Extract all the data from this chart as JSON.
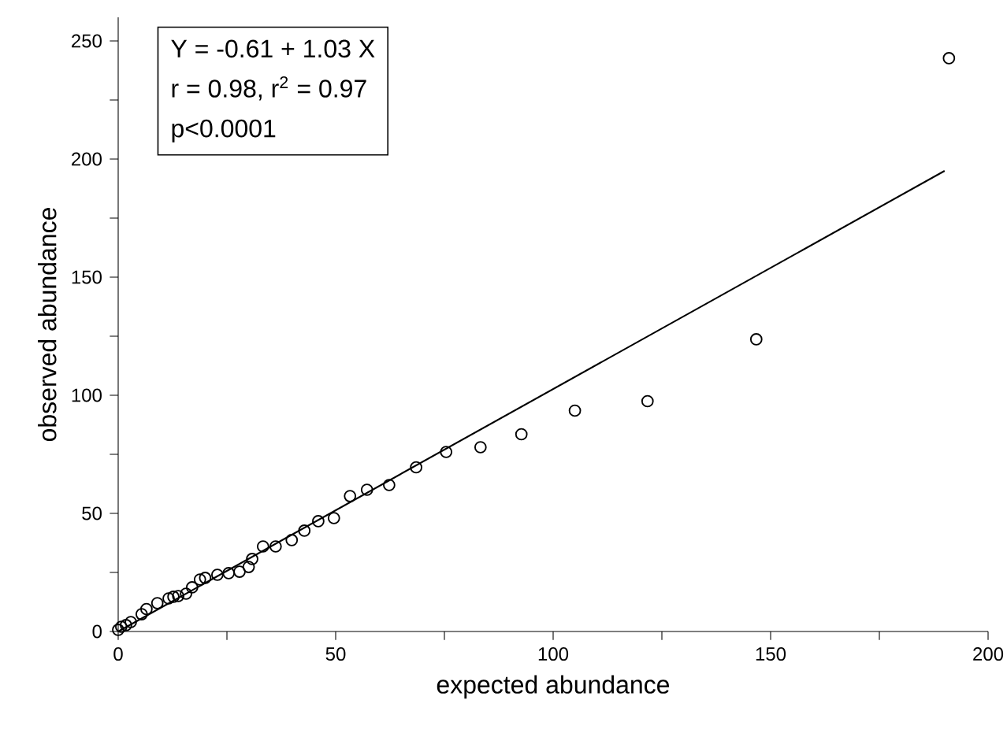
{
  "chart_data": {
    "type": "scatter",
    "xlabel": "expected abundance",
    "ylabel": "observed abundance",
    "xlim": [
      0,
      200
    ],
    "ylim": [
      0,
      260
    ],
    "xticks": [
      0,
      {
        "value": 25,
        "label": null
      },
      50,
      {
        "value": 75,
        "label": null
      },
      100,
      {
        "value": 125,
        "label": null
      },
      150,
      {
        "value": 175,
        "label": null
      },
      200
    ],
    "yticks": [
      0,
      {
        "value": 25,
        "label": null
      },
      50,
      {
        "value": 75,
        "label": null
      },
      100,
      {
        "value": 125,
        "label": null
      },
      150,
      {
        "value": 175,
        "label": null
      },
      200,
      {
        "value": 225,
        "label": null
      },
      250
    ],
    "grid": false,
    "annotations": [
      "Y = -0.61 + 1.03 X",
      "r = 0.98,  r$^{2}$ = 0.97",
      "p<0.0001"
    ],
    "series": [
      {
        "marker": "circle",
        "color": "#000000",
        "x": [
          0,
          0.7,
          1.8,
          2.9,
          5.4,
          6.5,
          9,
          11.6,
          12.7,
          13.8,
          15.6,
          17,
          18.8,
          20,
          22.8,
          25.4,
          27.9,
          30,
          30.8,
          33.3,
          36.2,
          39.9,
          42.8,
          46,
          49.6,
          53.3,
          57.2,
          62.3,
          68.5,
          75.4,
          83.3,
          92.7,
          105,
          121.7,
          146.7,
          191
        ],
        "values": [
          0.7,
          2,
          2.7,
          4,
          7.3,
          9.5,
          12,
          14,
          14.7,
          15,
          16,
          18.7,
          22,
          22.7,
          24,
          24.7,
          25.3,
          27.3,
          30.7,
          36,
          36,
          38.7,
          42.7,
          46.7,
          48,
          57.3,
          60,
          62,
          69.5,
          76,
          78,
          83.5,
          93.5,
          97.5,
          123.7,
          242.7
        ]
      },
      {
        "type": "line",
        "marker": "none",
        "line_style": "solid",
        "color": "#000000",
        "x": [
          0,
          190
        ],
        "values": [
          0,
          195
        ]
      }
    ]
  }
}
